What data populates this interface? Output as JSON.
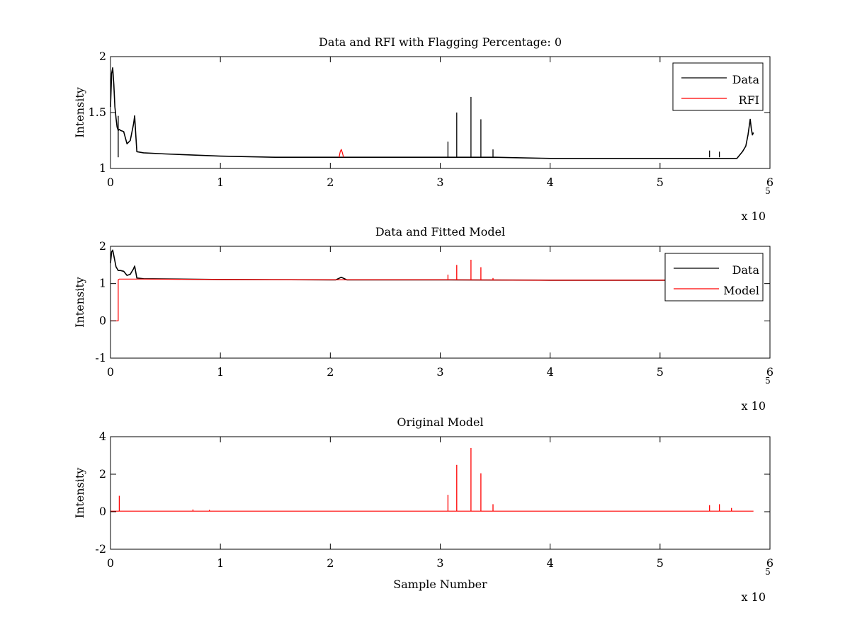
{
  "colors": {
    "data": "#000000",
    "rfi": "#ff0000",
    "model": "#ff0000",
    "axes": "#000000",
    "background": "#ffffff"
  },
  "chart_data": [
    {
      "type": "line",
      "title": "Data and RFI with Flagging Percentage: 0",
      "xlabel": "",
      "ylabel": "Intensity",
      "xlim": [
        0,
        600000
      ],
      "ylim": [
        1,
        2
      ],
      "xticks": [
        0,
        100000,
        200000,
        300000,
        400000,
        500000,
        600000
      ],
      "xtick_labels": [
        "0",
        "1",
        "2",
        "3",
        "4",
        "5",
        "6"
      ],
      "yticks": [
        1,
        1.5,
        2
      ],
      "ytick_labels": [
        "1",
        "1.5",
        "2"
      ],
      "x_multiplier": {
        "base": "x 10",
        "exponent": "5"
      },
      "legend": {
        "position": "top-right",
        "entries": [
          "Data",
          "RFI"
        ]
      },
      "series": [
        {
          "name": "Data",
          "color": "#000000",
          "x": [
            0,
            1000,
            2000,
            3000,
            4000,
            5000,
            6000,
            7000,
            8000,
            9000,
            12000,
            15000,
            18000,
            21000,
            22000,
            23000,
            24000,
            30000,
            50000,
            100000,
            150000,
            200000,
            250000,
            300000,
            350000,
            400000,
            450000,
            500000,
            550000,
            570000,
            575000,
            578000,
            580000,
            582000,
            583000,
            584000,
            585000
          ],
          "y": [
            1.55,
            1.85,
            1.9,
            1.75,
            1.55,
            1.45,
            1.37,
            1.34,
            1.35,
            1.34,
            1.33,
            1.22,
            1.25,
            1.4,
            1.47,
            1.3,
            1.15,
            1.14,
            1.13,
            1.11,
            1.1,
            1.1,
            1.1,
            1.1,
            1.1,
            1.09,
            1.09,
            1.09,
            1.09,
            1.09,
            1.15,
            1.2,
            1.3,
            1.44,
            1.36,
            1.3,
            1.32
          ]
        },
        {
          "name": "RFI",
          "color": "#ff0000",
          "x": [
            208000,
            209000,
            210000,
            211000,
            212000
          ],
          "y": [
            1.1,
            1.15,
            1.17,
            1.14,
            1.1
          ]
        }
      ],
      "spikes": [
        {
          "x": 7000,
          "y": 1.47
        },
        {
          "x": 307000,
          "y": 1.24
        },
        {
          "x": 315000,
          "y": 1.5
        },
        {
          "x": 328000,
          "y": 1.64
        },
        {
          "x": 337000,
          "y": 1.44
        },
        {
          "x": 348000,
          "y": 1.17
        },
        {
          "x": 545000,
          "y": 1.16
        },
        {
          "x": 554000,
          "y": 1.15
        }
      ]
    },
    {
      "type": "line",
      "title": "Data and Fitted Model",
      "xlabel": "",
      "ylabel": "Intensity",
      "xlim": [
        0,
        600000
      ],
      "ylim": [
        -1,
        2
      ],
      "xticks": [
        0,
        100000,
        200000,
        300000,
        400000,
        500000,
        600000
      ],
      "xtick_labels": [
        "0",
        "1",
        "2",
        "3",
        "4",
        "5",
        "6"
      ],
      "yticks": [
        -1,
        0,
        1,
        2
      ],
      "ytick_labels": [
        "-1",
        "0",
        "1",
        "2"
      ],
      "x_multiplier": {
        "base": "x 10",
        "exponent": "5"
      },
      "legend": {
        "position": "top-right",
        "entries": [
          "Data",
          "Model"
        ]
      },
      "series": [
        {
          "name": "Data",
          "color": "#000000",
          "x": [
            0,
            1000,
            2000,
            3000,
            5000,
            7000,
            9000,
            12000,
            15000,
            18000,
            21000,
            22000,
            24000,
            30000,
            100000,
            200000,
            205000,
            210000,
            215000,
            300000,
            400000,
            500000,
            585000
          ],
          "y": [
            1.55,
            1.85,
            1.9,
            1.75,
            1.45,
            1.35,
            1.35,
            1.33,
            1.22,
            1.25,
            1.4,
            1.47,
            1.15,
            1.13,
            1.11,
            1.1,
            1.1,
            1.17,
            1.1,
            1.1,
            1.09,
            1.09,
            1.1
          ]
        },
        {
          "name": "Model",
          "color": "#ff0000",
          "x": [
            0,
            7000,
            7000,
            8000,
            30000,
            100000,
            200000,
            300000,
            400000,
            500000,
            585000
          ],
          "y": [
            0,
            0,
            1.1,
            1.12,
            1.12,
            1.11,
            1.1,
            1.1,
            1.09,
            1.09,
            1.1
          ]
        }
      ],
      "spikes": [
        {
          "x": 307000,
          "y": 1.24
        },
        {
          "x": 315000,
          "y": 1.5
        },
        {
          "x": 328000,
          "y": 1.64
        },
        {
          "x": 337000,
          "y": 1.44
        },
        {
          "x": 348000,
          "y": 1.15
        }
      ]
    },
    {
      "type": "line",
      "title": "Original Model",
      "xlabel": "Sample Number",
      "ylabel": "Intensity",
      "xlim": [
        0,
        600000
      ],
      "ylim": [
        -2,
        4
      ],
      "xticks": [
        0,
        100000,
        200000,
        300000,
        400000,
        500000,
        600000
      ],
      "xtick_labels": [
        "0",
        "1",
        "2",
        "3",
        "4",
        "5",
        "6"
      ],
      "yticks": [
        -2,
        0,
        2,
        4
      ],
      "ytick_labels": [
        "-2",
        "0",
        "2",
        "4"
      ],
      "x_multiplier": {
        "base": "x 10",
        "exponent": "5"
      },
      "legend": null,
      "series": [
        {
          "name": "",
          "color": "#ff0000",
          "x": [
            0,
            585000
          ],
          "y": [
            0.03,
            0.03
          ]
        }
      ],
      "spikes": [
        {
          "x": 8000,
          "y": 0.85
        },
        {
          "x": 75000,
          "y": 0.12
        },
        {
          "x": 90000,
          "y": 0.1
        },
        {
          "x": 307000,
          "y": 0.9
        },
        {
          "x": 315000,
          "y": 2.5
        },
        {
          "x": 328000,
          "y": 3.4
        },
        {
          "x": 337000,
          "y": 2.05
        },
        {
          "x": 348000,
          "y": 0.4
        },
        {
          "x": 545000,
          "y": 0.35
        },
        {
          "x": 554000,
          "y": 0.4
        },
        {
          "x": 565000,
          "y": 0.2
        }
      ]
    }
  ]
}
